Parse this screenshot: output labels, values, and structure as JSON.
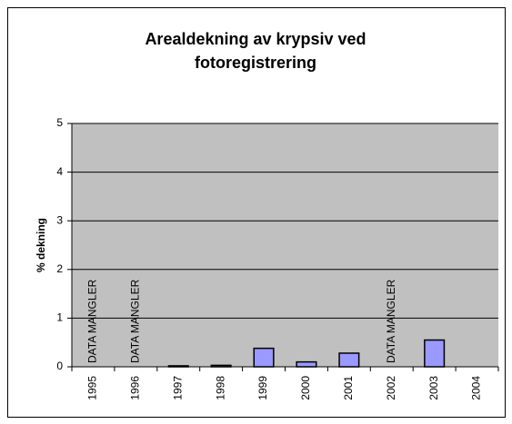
{
  "chart_data": {
    "type": "bar",
    "title": "Arealdekning av krypsiv ved fotoregistrering",
    "y_label": "% dekning",
    "categories": [
      "1995",
      "1996",
      "1997",
      "1998",
      "1999",
      "2000",
      "2001",
      "2002",
      "2003",
      "2004"
    ],
    "values": [
      null,
      null,
      0.02,
      0.03,
      0.38,
      0.1,
      0.28,
      null,
      0.55,
      null
    ],
    "color": "#9999ff",
    "ylim": [
      0,
      5
    ],
    "yticks": [
      0,
      1,
      2,
      3,
      4,
      5
    ],
    "grid": true,
    "annotations": [
      {
        "text": "DATA MANGLER",
        "category": "1995"
      },
      {
        "text": "DATA MANGLER",
        "category": "1996"
      },
      {
        "text": "DATA MANGLER",
        "category": "2002"
      }
    ]
  }
}
